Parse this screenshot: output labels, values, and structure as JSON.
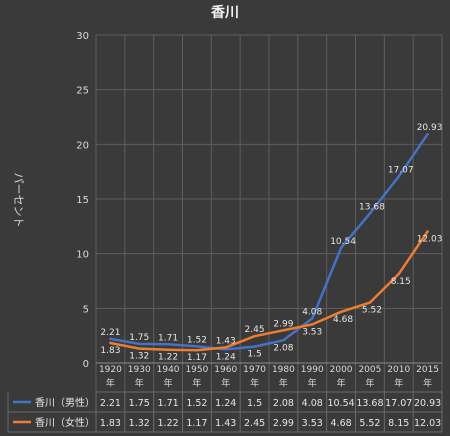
{
  "chart_data": {
    "type": "line",
    "title": "香川",
    "ylabel": "パーセント",
    "xlabel": "",
    "ylim": [
      0,
      30
    ],
    "yticks": [
      0,
      5,
      10,
      15,
      20,
      25,
      30
    ],
    "grid": true,
    "legend_placement": "data-table-left",
    "categories": [
      {
        "year": "1920",
        "suffix": "年"
      },
      {
        "year": "1930",
        "suffix": "年"
      },
      {
        "year": "1940",
        "suffix": "年"
      },
      {
        "year": "1950",
        "suffix": "年"
      },
      {
        "year": "1960",
        "suffix": "年"
      },
      {
        "year": "1970",
        "suffix": "年"
      },
      {
        "year": "1980",
        "suffix": "年"
      },
      {
        "year": "1990",
        "suffix": "年"
      },
      {
        "year": "2000",
        "suffix": "年"
      },
      {
        "year": "2005",
        "suffix": "年"
      },
      {
        "year": "2010",
        "suffix": "年"
      },
      {
        "year": "2015",
        "suffix": "年"
      }
    ],
    "series": [
      {
        "name": "香川（男性）",
        "color": "#4472c4",
        "values": [
          2.21,
          1.75,
          1.71,
          1.52,
          1.24,
          1.5,
          2.08,
          4.08,
          10.54,
          13.68,
          17.07,
          20.93
        ],
        "labels": [
          "2.21",
          "1.75",
          "1.71",
          "1.52",
          "1.24",
          "1.5",
          "2.08",
          "4.08",
          "10.54",
          "13.68",
          "17.07",
          "20.93"
        ]
      },
      {
        "name": "香川（女性）",
        "color": "#ed7d31",
        "values": [
          1.83,
          1.32,
          1.22,
          1.17,
          1.43,
          2.45,
          2.99,
          3.53,
          4.68,
          5.52,
          8.15,
          12.03
        ],
        "labels": [
          "1.83",
          "1.32",
          "1.22",
          "1.17",
          "1.43",
          "2.45",
          "2.99",
          "3.53",
          "4.68",
          "5.52",
          "8.15",
          "12.03"
        ]
      }
    ]
  }
}
